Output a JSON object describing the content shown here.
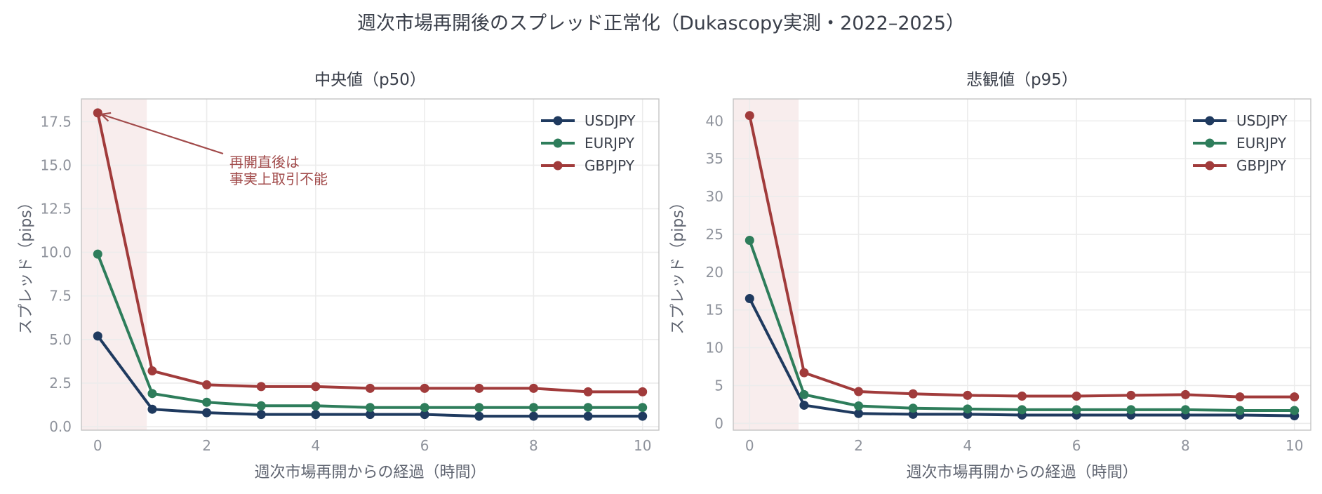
{
  "figure": {
    "suptitle": "週次市場再開後のスプレッド正常化（Dukascopy実測・2022–2025）"
  },
  "colors": {
    "USDJPY": "#1f3a5f",
    "EURJPY": "#2e7d5b",
    "GBPJPY": "#a13b3b",
    "shade": "#f8eded",
    "annotation": "#a14a4a"
  },
  "chart_data": [
    {
      "type": "line",
      "title": "中央値（p50）",
      "xlabel": "週次市場再開からの経過（時間）",
      "ylabel": "スプレッド（pips）",
      "xlim": [
        -0.3,
        10.3
      ],
      "ylim": [
        -0.2,
        18.8
      ],
      "xticks": [
        "0",
        "2",
        "4",
        "6",
        "8",
        "10"
      ],
      "yticks": [
        "0.0",
        "2.5",
        "5.0",
        "7.5",
        "10.0",
        "12.5",
        "15.0",
        "17.5"
      ],
      "shade_x": [
        -0.3,
        0.9
      ],
      "grid": true,
      "legend": "top-right",
      "x": [
        0,
        1,
        2,
        3,
        4,
        5,
        6,
        7,
        8,
        9,
        10
      ],
      "series": [
        {
          "name": "USDJPY",
          "values": [
            5.2,
            1.0,
            0.8,
            0.7,
            0.7,
            0.7,
            0.7,
            0.6,
            0.6,
            0.6,
            0.6
          ]
        },
        {
          "name": "EURJPY",
          "values": [
            9.9,
            1.9,
            1.4,
            1.2,
            1.2,
            1.1,
            1.1,
            1.1,
            1.1,
            1.1,
            1.1
          ]
        },
        {
          "name": "GBPJPY",
          "values": [
            18.0,
            3.2,
            2.4,
            2.3,
            2.3,
            2.2,
            2.2,
            2.2,
            2.2,
            2.0,
            2.0
          ]
        }
      ],
      "annotation": {
        "lines": [
          "再開直後は",
          "事実上取引不能"
        ],
        "target_x": 0,
        "target_y": 18.0
      }
    },
    {
      "type": "line",
      "title": "悲観値（p95）",
      "xlabel": "週次市場再開からの経過（時間）",
      "ylabel": "スプレッド（pips）",
      "xlim": [
        -0.3,
        10.3
      ],
      "ylim": [
        -0.9,
        42.9
      ],
      "xticks": [
        "0",
        "2",
        "4",
        "6",
        "8",
        "10"
      ],
      "yticks": [
        "0",
        "5",
        "10",
        "15",
        "20",
        "25",
        "30",
        "35",
        "40"
      ],
      "shade_x": [
        -0.3,
        0.9
      ],
      "grid": true,
      "legend": "top-right",
      "x": [
        0,
        1,
        2,
        3,
        4,
        5,
        6,
        7,
        8,
        9,
        10
      ],
      "series": [
        {
          "name": "USDJPY",
          "values": [
            16.5,
            2.4,
            1.3,
            1.2,
            1.2,
            1.1,
            1.1,
            1.1,
            1.1,
            1.1,
            1.0
          ]
        },
        {
          "name": "EURJPY",
          "values": [
            24.2,
            3.8,
            2.3,
            2.0,
            1.9,
            1.8,
            1.8,
            1.8,
            1.8,
            1.7,
            1.7
          ]
        },
        {
          "name": "GBPJPY",
          "values": [
            40.7,
            6.7,
            4.2,
            3.9,
            3.7,
            3.6,
            3.6,
            3.7,
            3.8,
            3.5,
            3.5
          ]
        }
      ]
    }
  ]
}
